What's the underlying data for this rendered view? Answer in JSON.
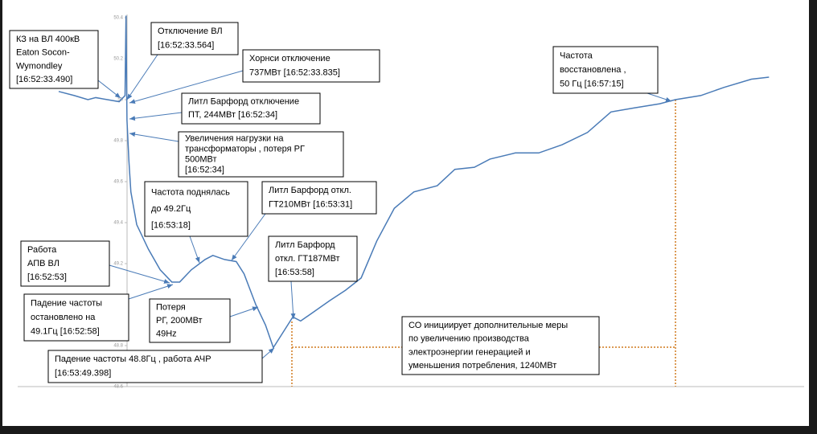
{
  "chart_data": {
    "type": "line",
    "x": [
      "16:51:59",
      "16:52:07",
      "16:52:14",
      "16:52:18",
      "16:52:24",
      "16:52:30",
      "16:52:33",
      "16:52:33.5",
      "16:52:34",
      "16:52:35",
      "16:52:36",
      "16:52:39",
      "16:52:45",
      "16:52:51",
      "16:52:57",
      "16:53:01",
      "16:53:07",
      "16:53:14",
      "16:53:18",
      "16:53:24",
      "16:53:30",
      "16:53:34",
      "16:53:40",
      "16:53:45",
      "16:53:49",
      "16:53:55",
      "16:53:59",
      "16:54:03",
      "16:54:09",
      "16:54:18",
      "16:54:26",
      "16:54:34",
      "16:54:42",
      "16:54:51",
      "16:55:01",
      "16:55:13",
      "16:55:22",
      "16:55:32",
      "16:55:40",
      "16:55:53",
      "16:56:05",
      "16:56:17",
      "16:56:30",
      "16:56:42",
      "16:56:54",
      "16:57:07",
      "16:57:15",
      "16:57:28",
      "16:57:40",
      "16:57:54",
      "16:58:03"
    ],
    "series": [
      {
        "color": "#4a7bb7",
        "values": [
          50.04,
          50.02,
          50.0,
          50.01,
          50.0,
          49.99,
          50.02,
          50.41,
          49.9,
          49.7,
          49.55,
          49.39,
          49.27,
          49.17,
          49.11,
          49.11,
          49.17,
          49.22,
          49.24,
          49.22,
          49.21,
          49.15,
          49.0,
          48.9,
          48.79,
          48.88,
          48.94,
          48.92,
          48.96,
          49.02,
          49.07,
          49.13,
          49.31,
          49.47,
          49.55,
          49.58,
          49.66,
          49.67,
          49.71,
          49.74,
          49.74,
          49.78,
          49.84,
          49.94,
          49.96,
          49.98,
          50.0,
          50.02,
          50.06,
          50.1,
          50.11
        ]
      }
    ],
    "xlim": [
      "16:51:38",
      "16:58:21"
    ],
    "ylim": [
      48.6,
      50.4
    ],
    "yticks": [
      48.6,
      48.8,
      49,
      49.2,
      49.4,
      49.6,
      49.8,
      50,
      50.2,
      50.4
    ],
    "annotations": [
      [
        "КЗ на ВЛ 400кВ",
        "Eaton Socon-",
        "Wymondley",
        "[16:52:33.490]"
      ],
      [
        "Отключение ВЛ",
        "[16:52:33.564]"
      ],
      [
        "Хорнси отключение",
        "737МВт [16:52:33.835]"
      ],
      [
        "Литл Барфорд отключение",
        "ПТ, 244МВт [16:52:34]"
      ],
      [
        "Увеличения нагрузки на",
        "трансформаторы , потеря РГ",
        "500МВт",
        "[16:52:34]"
      ],
      [
        "Частота поднялась",
        "до 49.2Гц",
        "[16:53:18]"
      ],
      [
        "Литл Барфорд откл.",
        "ГТ210МВт [16:53:31]"
      ],
      [
        "Работа",
        "АПВ ВЛ",
        "[16:52:53]"
      ],
      [
        "Литл Барфорд",
        "откл. ГТ187МВт",
        "[16:53:58]"
      ],
      [
        "Падение частоты",
        "остановлено на",
        "49.1Гц [16:52:58]"
      ],
      [
        "Потеря",
        "РГ, 200МВт",
        "49Hz"
      ],
      [
        "Падение частоты 48.8Гц , работа АЧР",
        "[16:53:49.398]"
      ],
      [
        "СО инициирует дополнительные меры",
        "по увеличению производства",
        "электроэнергии генерацией и",
        "уменьшения потребления, 1240МВт"
      ],
      [
        "Частота",
        "восстановлена ,",
        "50 Гц [16:57:15]"
      ]
    ]
  }
}
